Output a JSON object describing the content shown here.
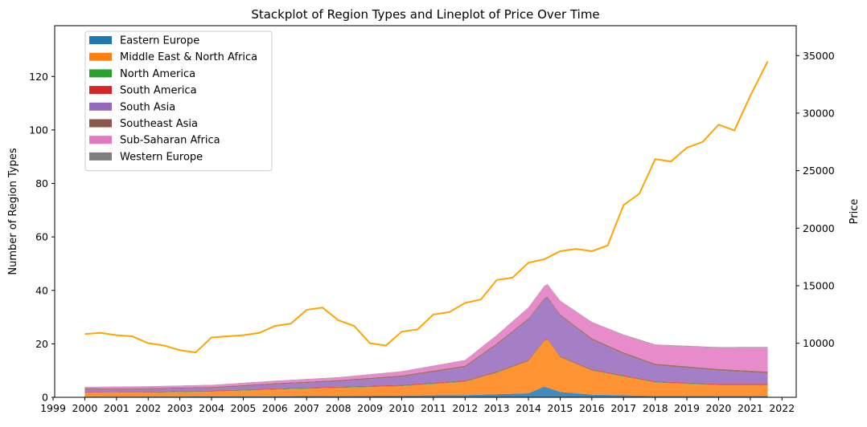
{
  "chart_data": {
    "type": "area",
    "title": "Stackplot of Region Types and Lineplot of Price Over Time",
    "xlabel": "",
    "ylabel": "Number of Region Types",
    "y2label": "Price",
    "xlim": [
      1999.05,
      2022.45
    ],
    "ylim": [
      0,
      139
    ],
    "y2lim": [
      5300,
      37600
    ],
    "x_ticks": [
      "1999",
      "2000",
      "2001",
      "2002",
      "2003",
      "2004",
      "2005",
      "2006",
      "2007",
      "2008",
      "2009",
      "2010",
      "2011",
      "2012",
      "2013",
      "2014",
      "2015",
      "2016",
      "2017",
      "2018",
      "2019",
      "2020",
      "2021",
      "2022"
    ],
    "y_ticks": [
      0,
      20,
      40,
      60,
      80,
      100,
      120
    ],
    "y2_ticks": [
      10000,
      15000,
      20000,
      25000,
      30000,
      35000
    ],
    "legend_position": "upper-left",
    "series": [
      {
        "name": "Eastern Europe",
        "color": "#1f77b4",
        "x": [
          2000,
          2004,
          2008,
          2012,
          2014,
          2014.5,
          2015,
          2016,
          2018,
          2021.55
        ],
        "values": [
          0.2,
          0.3,
          0.5,
          0.8,
          1.5,
          4,
          2,
          1,
          0.5,
          0.5
        ]
      },
      {
        "name": "Middle East & North Africa",
        "color": "#ff7f0e",
        "x": [
          2000,
          2002,
          2004,
          2006,
          2008,
          2010,
          2012,
          2013,
          2014,
          2014.6,
          2015,
          2016,
          2017,
          2018,
          2020,
          2021.55
        ],
        "values": [
          1.5,
          1.5,
          1.8,
          2.5,
          3,
          3.5,
          5,
          8,
          12,
          18,
          13,
          9,
          7,
          5,
          4,
          4
        ]
      },
      {
        "name": "North America",
        "color": "#2ca02c",
        "x": [
          2000,
          2010,
          2021.55
        ],
        "values": [
          0.1,
          0.2,
          0.2
        ]
      },
      {
        "name": "South America",
        "color": "#d62728",
        "x": [
          2000,
          2010,
          2021.55
        ],
        "values": [
          0.2,
          0.3,
          0.3
        ]
      },
      {
        "name": "South Asia",
        "color": "#9467bd",
        "x": [
          2000,
          2004,
          2008,
          2010,
          2012,
          2013,
          2014,
          2015,
          2016,
          2017,
          2018,
          2020,
          2021.55
        ],
        "values": [
          1,
          1,
          2,
          3,
          5,
          10,
          15,
          15,
          11,
          8,
          6,
          5,
          4
        ]
      },
      {
        "name": "Southeast Asia",
        "color": "#8c564b",
        "x": [
          2000,
          2010,
          2021.55
        ],
        "values": [
          0.3,
          0.5,
          0.6
        ]
      },
      {
        "name": "Sub-Saharan Africa",
        "color": "#e377c2",
        "x": [
          2000,
          2004,
          2008,
          2012,
          2014,
          2016,
          2018,
          2020,
          2021.55
        ],
        "values": [
          0.5,
          0.7,
          1,
          2,
          4,
          6,
          7,
          8,
          9
        ]
      },
      {
        "name": "Western Europe",
        "color": "#7f7f7f",
        "x": [
          2000,
          2010,
          2021.55
        ],
        "values": [
          0.1,
          0.1,
          0.2
        ]
      },
      {
        "name": "",
        "color": "#ffa500",
        "axis": "right",
        "line": true,
        "x": [
          2000,
          2000.5,
          2001,
          2001.5,
          2002,
          2002.5,
          2003,
          2003.5,
          2004,
          2004.5,
          2005,
          2005.5,
          2006,
          2006.5,
          2007,
          2007.5,
          2008,
          2008.5,
          2009,
          2009.5,
          2010,
          2010.5,
          2011,
          2011.5,
          2012,
          2012.5,
          2013,
          2013.5,
          2014,
          2014.5,
          2015,
          2015.5,
          2016,
          2016.5,
          2017,
          2017.5,
          2018,
          2018.5,
          2019,
          2019.5,
          2020,
          2020.5,
          2021,
          2021.55
        ],
        "values": [
          10800,
          10900,
          10700,
          10600,
          10000,
          9800,
          9400,
          9200,
          10500,
          10600,
          10700,
          10900,
          11500,
          11700,
          12900,
          13100,
          12000,
          11500,
          10000,
          9800,
          11000,
          11200,
          12500,
          12700,
          13500,
          13800,
          15500,
          15700,
          17000,
          17300,
          18000,
          18200,
          18000,
          18500,
          22000,
          23000,
          26000,
          25800,
          27000,
          27500,
          29000,
          28500,
          31500,
          34500
        ]
      }
    ]
  }
}
